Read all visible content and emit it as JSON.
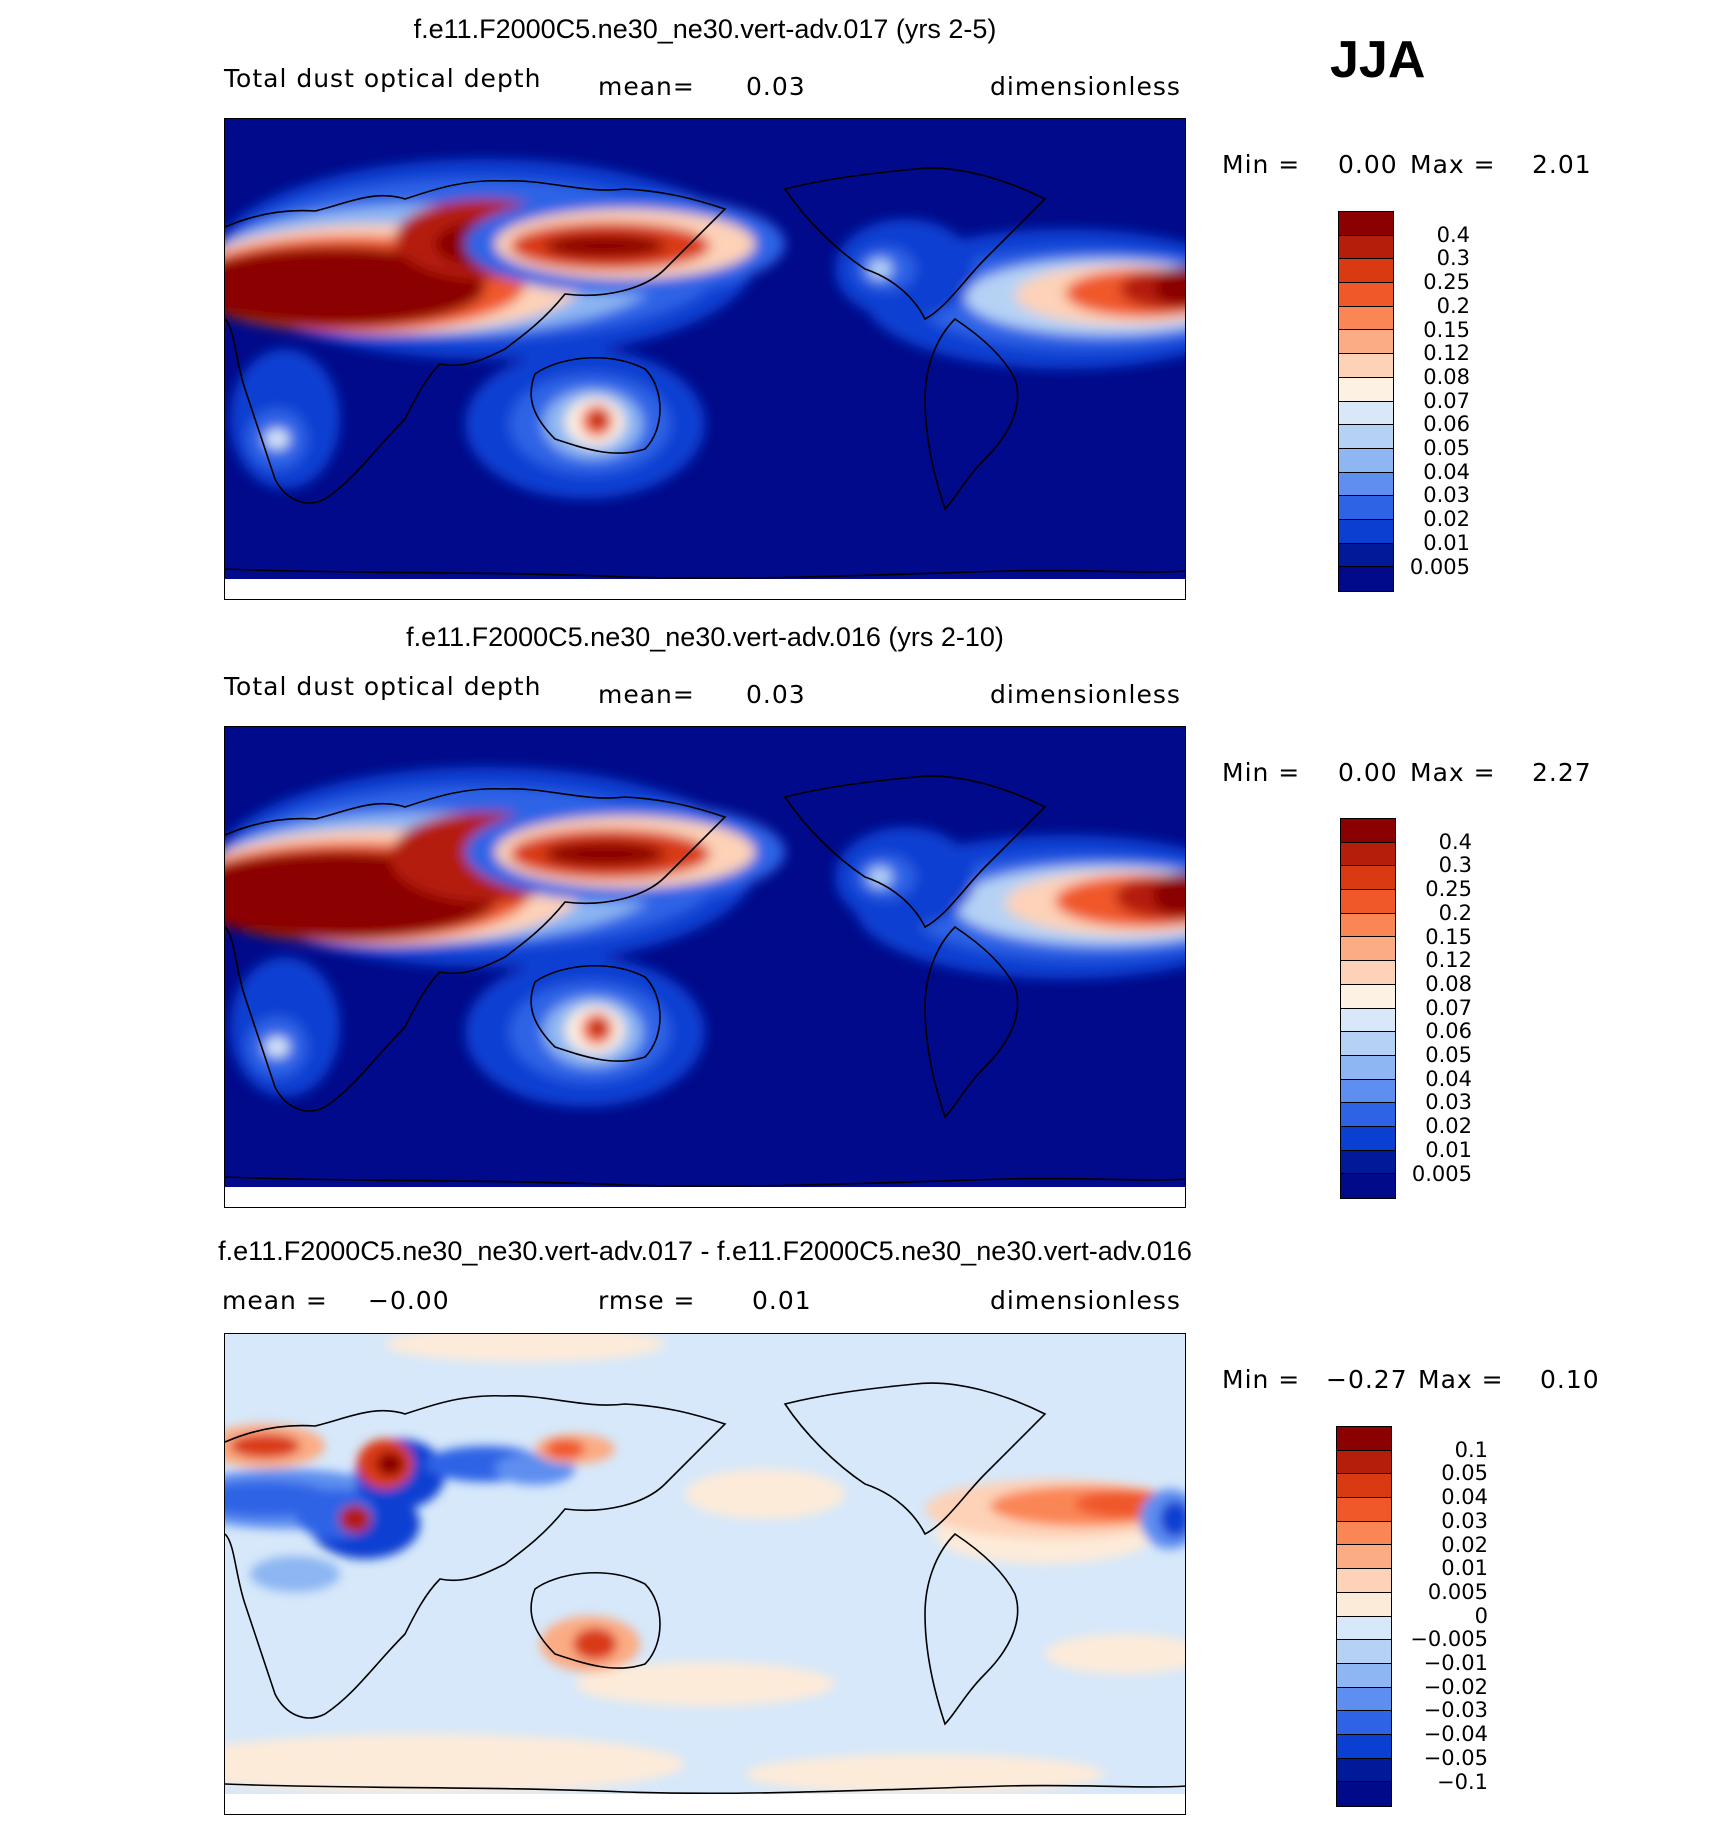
{
  "season": "JJA",
  "panels": [
    {
      "title": "f.e11.F2000C5.ne30_ne30.vert-adv.017 (yrs 2-5)",
      "variable": "Total dust optical depth",
      "mean_label": "mean=",
      "mean_value": "0.03",
      "units": "dimensionless",
      "min_label": "Min =",
      "min_value": "0.00",
      "max_label": "Max =",
      "max_value": "2.01",
      "colorbar_labels": [
        "0.4",
        "0.3",
        "0.25",
        "0.2",
        "0.15",
        "0.12",
        "0.08",
        "0.07",
        "0.06",
        "0.05",
        "0.04",
        "0.03",
        "0.02",
        "0.01",
        "0.005"
      ]
    },
    {
      "title": "f.e11.F2000C5.ne30_ne30.vert-adv.016 (yrs 2-10)",
      "variable": "Total dust optical depth",
      "mean_label": "mean=",
      "mean_value": "0.03",
      "units": "dimensionless",
      "min_label": "Min =",
      "min_value": "0.00",
      "max_label": "Max =",
      "max_value": "2.27",
      "colorbar_labels": [
        "0.4",
        "0.3",
        "0.25",
        "0.2",
        "0.15",
        "0.12",
        "0.08",
        "0.07",
        "0.06",
        "0.05",
        "0.04",
        "0.03",
        "0.02",
        "0.01",
        "0.005"
      ]
    },
    {
      "title": "f.e11.F2000C5.ne30_ne30.vert-adv.017 - f.e11.F2000C5.ne30_ne30.vert-adv.016",
      "mean_label": "mean =",
      "mean_value": "−0.00",
      "rmse_label": "rmse =",
      "rmse_value": "0.01",
      "units": "dimensionless",
      "min_label": "Min =",
      "min_value": "−0.27",
      "max_label": "Max =",
      "max_value": "0.10",
      "colorbar_labels": [
        "0.1",
        "0.05",
        "0.04",
        "0.03",
        "0.02",
        "0.01",
        "0.005",
        "0",
        "−0.005",
        "−0.01",
        "−0.02",
        "−0.03",
        "−0.04",
        "−0.05",
        "−0.1"
      ]
    }
  ],
  "colors": {
    "field_scale": [
      "#8b0000",
      "#b41e0a",
      "#d93a12",
      "#f0582a",
      "#fa8656",
      "#fbac84",
      "#fdd2b7",
      "#fdf1e3",
      "#d8e8f8",
      "#b5d2f5",
      "#8db6f2",
      "#5d8ef0",
      "#2e63e6",
      "#0b3fd2",
      "#001a9a",
      "#000a8a"
    ],
    "diff_scale": [
      "#8b0000",
      "#b41e0a",
      "#d93a12",
      "#f0582a",
      "#fa8656",
      "#fbac84",
      "#fdd2b7",
      "#fdebd9",
      "#d6e8fa",
      "#b5d2f5",
      "#8db6f2",
      "#5d8ef0",
      "#2e63e6",
      "#0b3fd2",
      "#001a9a",
      "#000a8a"
    ],
    "ocean_background": "#000a8a",
    "diff_background": "#d6e8fa"
  }
}
